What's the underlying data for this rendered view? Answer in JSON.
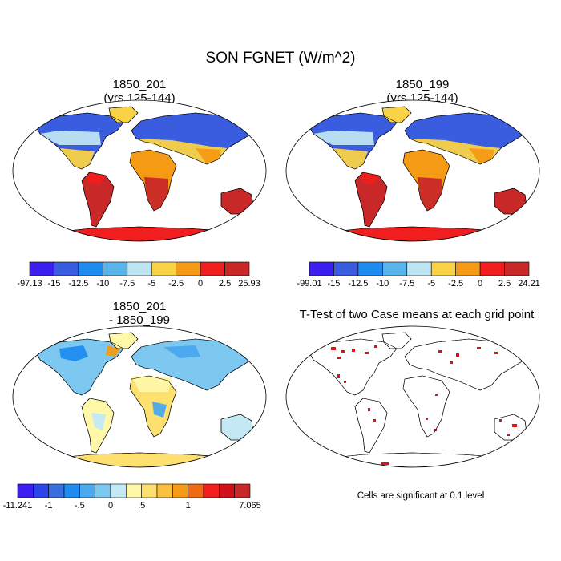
{
  "figure": {
    "title": "SON FGNET (W/m^2)"
  },
  "panels": [
    {
      "id": "case1",
      "title_line1": "1850_201",
      "title_line2": "(yrs 125-144)",
      "colorbar": {
        "colors": [
          "#3c1ef0",
          "#3a5cde",
          "#1e8cf0",
          "#5ab4ec",
          "#bfe4f2",
          "#fad246",
          "#f59a14",
          "#f01e1e",
          "#c82828"
        ],
        "labels": [
          "-97.13",
          "-15",
          "-12.5",
          "-10",
          "-7.5",
          "-5",
          "-2.5",
          "0",
          "2.5",
          "25.93"
        ]
      }
    },
    {
      "id": "case2",
      "title_line1": "1850_199",
      "title_line2": "(yrs 125-144)",
      "colorbar": {
        "colors": [
          "#3c1ef0",
          "#3a5cde",
          "#1e8cf0",
          "#5ab4ec",
          "#bfe4f2",
          "#fad246",
          "#f59a14",
          "#f01e1e",
          "#c82828"
        ],
        "labels": [
          "-99.01",
          "-15",
          "-12.5",
          "-10",
          "-7.5",
          "-5",
          "-2.5",
          "0",
          "2.5",
          "24.21"
        ]
      }
    },
    {
      "id": "diff",
      "title_line1": "1850_201",
      "title_line2": "- 1850_199",
      "colorbar": {
        "colors": [
          "#3c1ef0",
          "#2a46e8",
          "#3a70de",
          "#1e8cf0",
          "#4aa8ee",
          "#7cc8f0",
          "#c4e8f4",
          "#fff8a8",
          "#fde070",
          "#fac040",
          "#f59a14",
          "#f06a14",
          "#f01e1e",
          "#d0101a",
          "#c82828"
        ],
        "labels": [
          "-11.241",
          "-1",
          "-.5",
          "0",
          ".5",
          "1",
          "7.065"
        ]
      }
    },
    {
      "id": "ttest",
      "title_line1": "T-Test of two Case means at each grid point",
      "note": "Cells are significant at 0.1 level"
    }
  ]
}
